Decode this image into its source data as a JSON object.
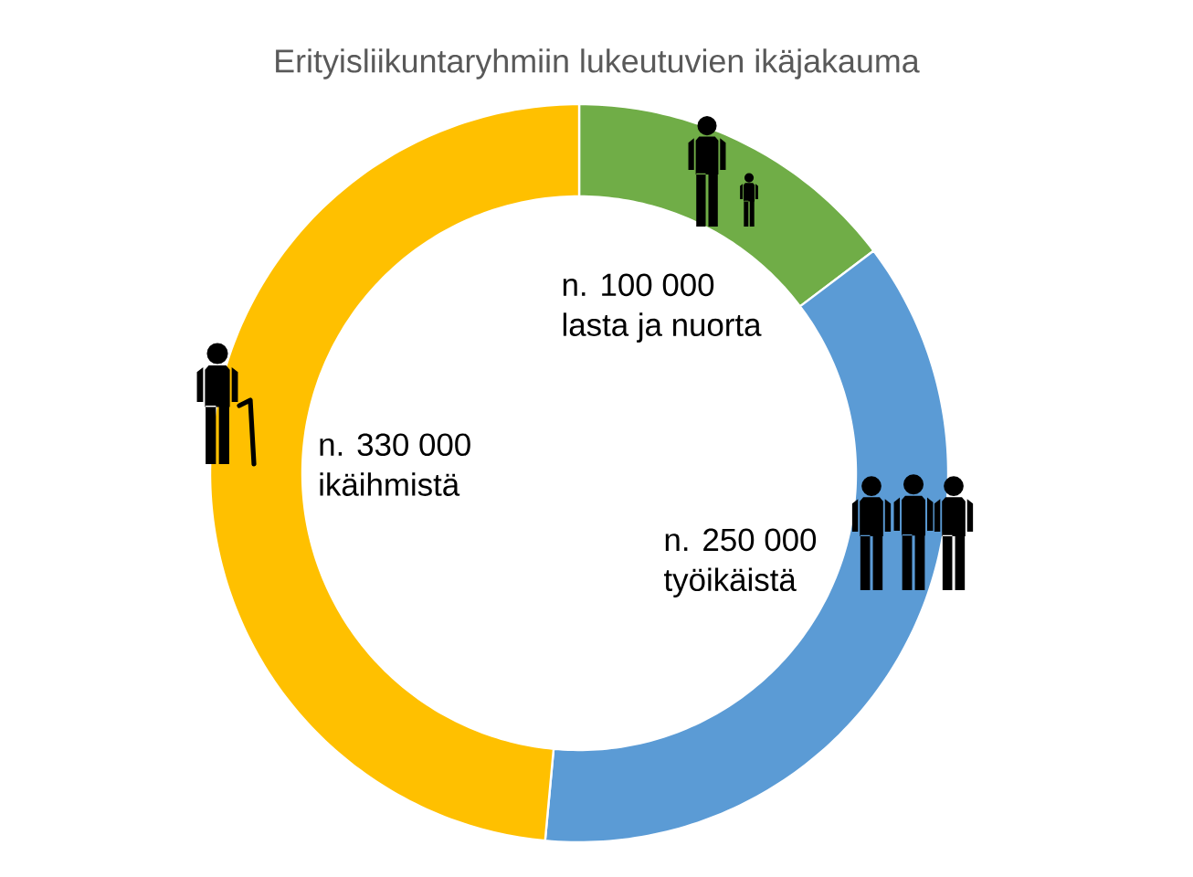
{
  "chart_data": {
    "type": "donut",
    "title": "Erityisliikuntaryhmiin lukeutuvien ikäjakauma",
    "categories": [
      "lasta ja nuorta",
      "työikäistä",
      "ikäihmistä"
    ],
    "values": [
      100000,
      250000,
      330000
    ],
    "value_labels": [
      "n. 100 000",
      "n. 250 000",
      "n. 330 000"
    ],
    "colors": [
      "#70ad47",
      "#5b9bd5",
      "#ffc000"
    ]
  }
}
